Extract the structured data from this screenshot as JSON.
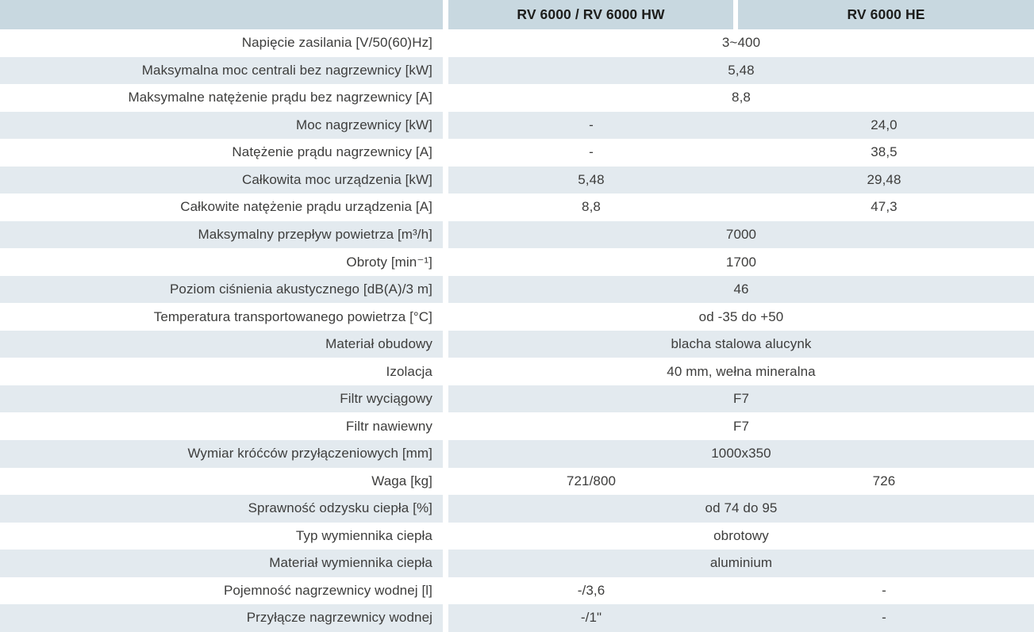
{
  "table": {
    "columns": [
      {
        "id": "col1",
        "label": "RV 6000 / RV 6000 HW"
      },
      {
        "id": "col2",
        "label": "RV 6000 HE"
      }
    ],
    "rows": [
      {
        "label": "Napięcie zasilania [V/50(60)Hz]",
        "span": "3~400"
      },
      {
        "label": "Maksymalna moc centrali bez nagrzewnicy [kW]",
        "span": "5,48"
      },
      {
        "label": "Maksymalne natężenie prądu bez nagrzewnicy [A]",
        "span": "8,8"
      },
      {
        "label": "Moc nagrzewnicy [kW]",
        "col1": "-",
        "col2": "24,0"
      },
      {
        "label": "Natężenie prądu nagrzewnicy [A]",
        "col1": "-",
        "col2": "38,5"
      },
      {
        "label": "Całkowita moc urządzenia [kW]",
        "col1": "5,48",
        "col2": "29,48"
      },
      {
        "label": "Całkowite natężenie prądu urządzenia [A]",
        "col1": "8,8",
        "col2": "47,3"
      },
      {
        "label": "Maksymalny przepływ powietrza [m³/h]",
        "span": "7000"
      },
      {
        "label": "Obroty [min⁻¹]",
        "span": "1700"
      },
      {
        "label": "Poziom ciśnienia akustycznego  [dB(A)/3 m]",
        "span": "46"
      },
      {
        "label": "Temperatura transportowanego powietrza [°C]",
        "span": "od -35 do +50"
      },
      {
        "label": "Materiał obudowy",
        "span": "blacha stalowa alucynk"
      },
      {
        "label": "Izolacja",
        "span": "40 mm, wełna mineralna"
      },
      {
        "label": "Filtr wyciągowy",
        "span": "F7"
      },
      {
        "label": "Filtr nawiewny",
        "span": "F7"
      },
      {
        "label": "Wymiar króćców przyłączeniowych [mm]",
        "span": "1000x350"
      },
      {
        "label": "Waga [kg]",
        "col1": "721/800",
        "col2": "726"
      },
      {
        "label": "Sprawność odzysku ciepła [%]",
        "span": "od 74 do 95"
      },
      {
        "label": "Typ wymiennika ciepła",
        "span": "obrotowy"
      },
      {
        "label": "Materiał wymiennika ciepła",
        "span": "aluminium"
      },
      {
        "label": "Pojemność nagrzewnicy wodnej [l]",
        "col1": "-/3,6",
        "col2": "-"
      },
      {
        "label": "Przyłącze nagrzewnicy wodnej",
        "col1": "-/1\"",
        "col2": "-"
      }
    ],
    "colors": {
      "header_bg": "#c8d8e0",
      "alt_row_bg": "#e3eaef",
      "row_bg": "#ffffff",
      "text": "#3d3d3c",
      "header_text": "#1d1d1b"
    }
  }
}
